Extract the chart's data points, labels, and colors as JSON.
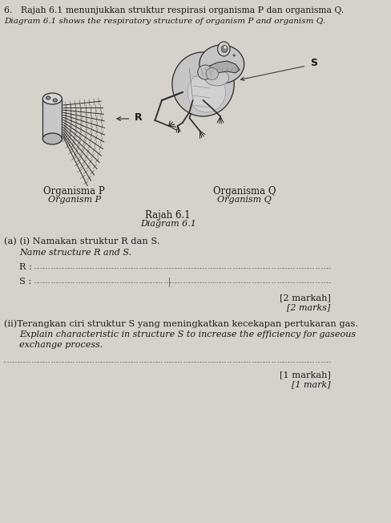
{
  "bg_color": "#d5d2cb",
  "title_line1": "6.   Rajah 6.1 menunjukkan struktur respirasi organisma P dan organisma Q.",
  "title_line2": "Diagram 6.1 shows the respiratory structure of organism P and organism Q.",
  "diagram_title1": "Rajah 6.1",
  "diagram_title2": "Diagram 6.1",
  "org_p_label1": "Organisma P",
  "org_p_label2": "Organism P",
  "org_q_label1": "Organisma Q",
  "org_q_label2": "Organism Q",
  "label_R": "R",
  "label_S": "S",
  "section_a_i_malay": "(a) (i) Namakan struktur R dan S.",
  "section_a_i_english": "Name structure R and S.",
  "r_line": "R :",
  "s_line": "S :",
  "marks_malay_1": "[2 markah]",
  "marks_english_1": "[2 marks]",
  "section_a_ii_malay": "(ii)Terangkan ciri struktur S yang meningkatkan kecekapan pertukaran gas.",
  "section_a_ii_english": "Explain characteristic in structure S to increase the efficiency for gaseous",
  "section_a_ii_english2": "exchange process.",
  "marks_malay_2": "[1 markah]",
  "marks_english_2": "[1 mark]",
  "text_color": "#1a1a1a",
  "dotted_line_color": "#888888",
  "draw_color": "#3a3a3a"
}
